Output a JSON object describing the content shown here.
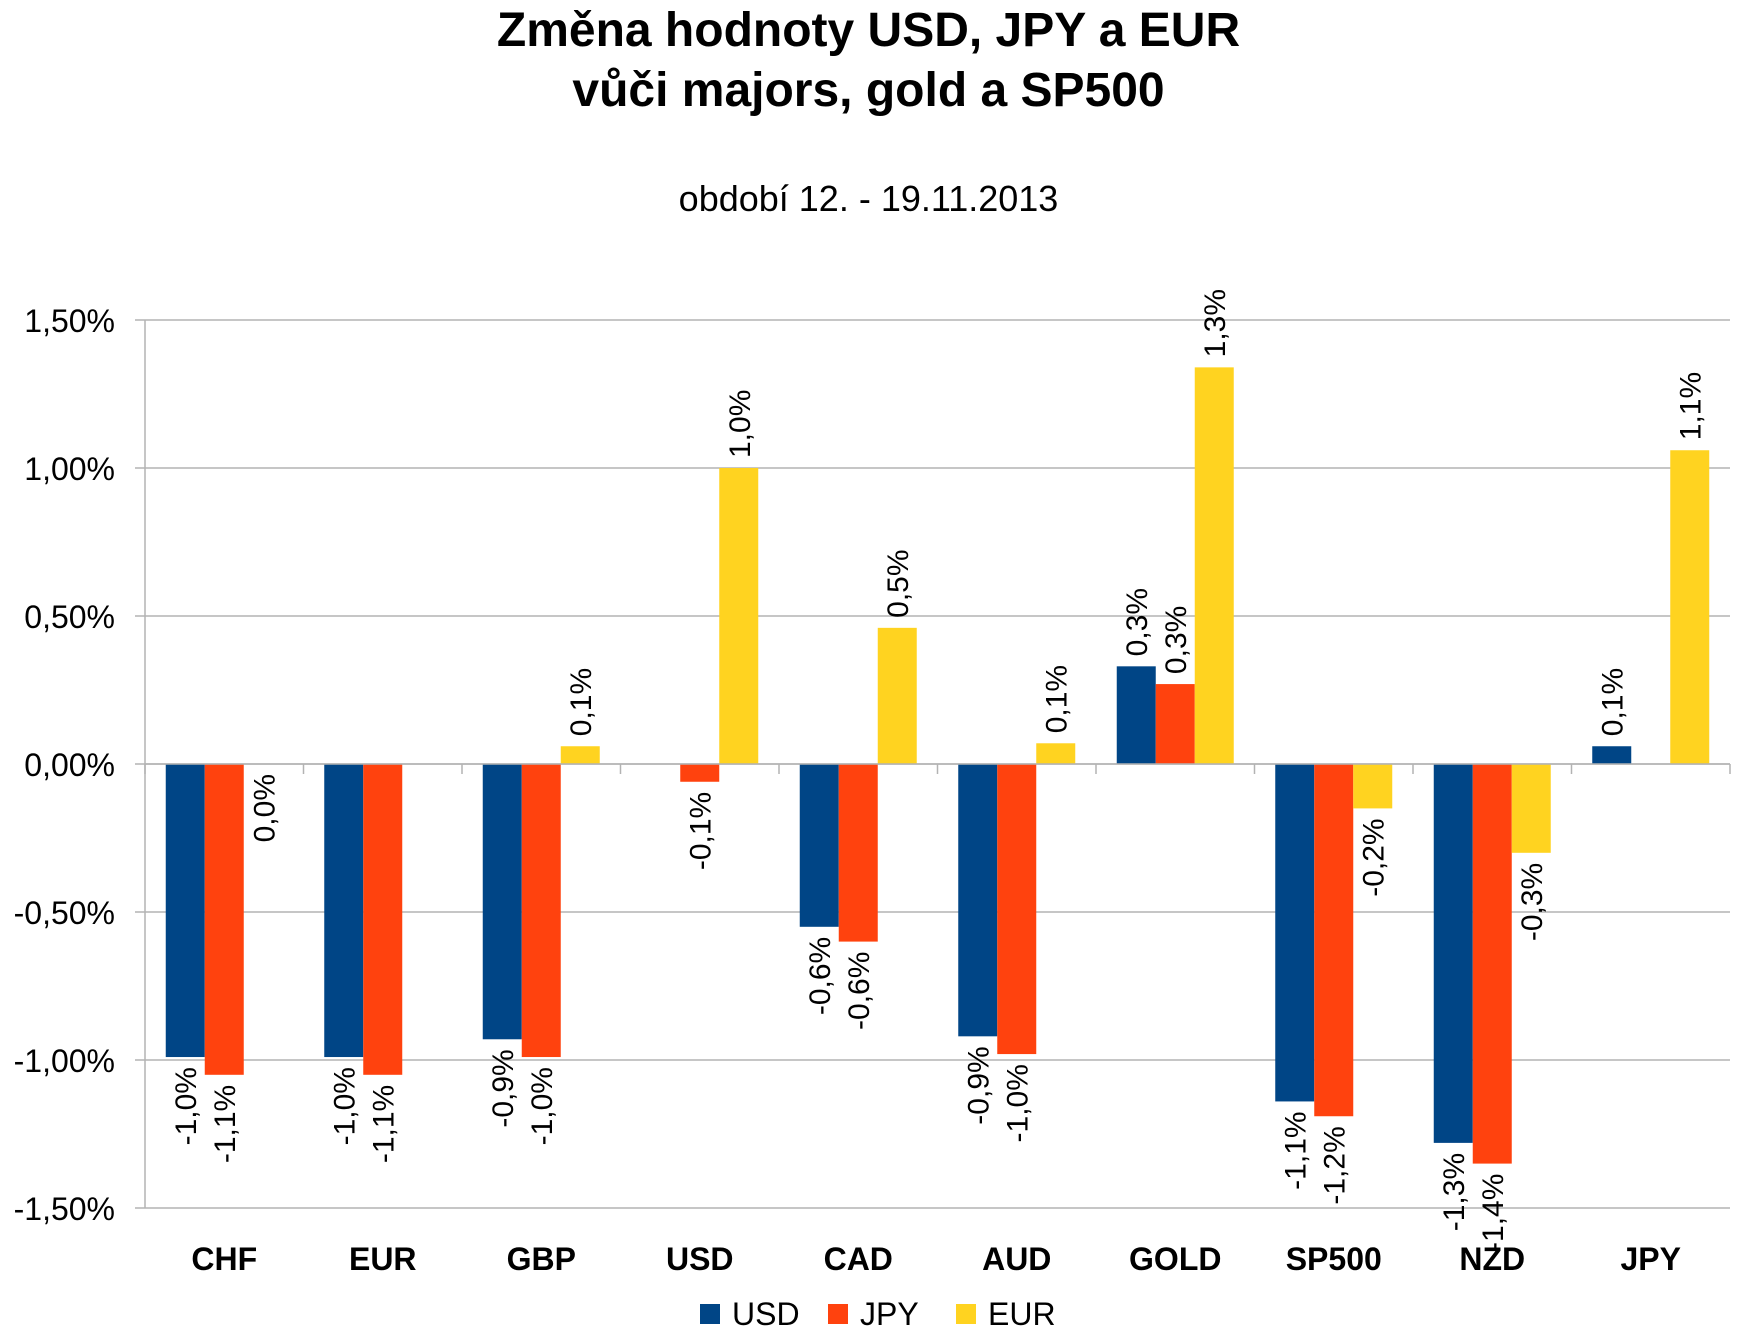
{
  "chart_data": {
    "type": "bar",
    "title_line1": "Změna hodnoty USD, JPY a EUR",
    "title_line2": "vůči majors, gold a SP500",
    "subtitle": "období 12. - 19.11.2013",
    "categories": [
      "CHF",
      "EUR",
      "GBP",
      "USD",
      "CAD",
      "AUD",
      "GOLD",
      "SP500",
      "NZD",
      "JPY"
    ],
    "series": [
      {
        "name": "USD",
        "color": "#004586",
        "values": [
          -0.99,
          -0.99,
          -0.93,
          null,
          -0.55,
          -0.92,
          0.33,
          -1.14,
          -1.28,
          0.06
        ],
        "labels": [
          "-1,0%",
          "-1,0%",
          "-0,9%",
          "",
          "-0,6%",
          "-0,9%",
          "0,3%",
          "-1,1%",
          "-1,3%",
          "0,1%"
        ]
      },
      {
        "name": "JPY",
        "color": "#ff420e",
        "values": [
          -1.05,
          -1.05,
          -0.99,
          -0.06,
          -0.6,
          -0.98,
          0.27,
          -1.19,
          -1.35,
          null
        ],
        "labels": [
          "-1,1%",
          "-1,1%",
          "-1,0%",
          "-0,1%",
          "-0,6%",
          "-1,0%",
          "0,3%",
          "-1,2%",
          "-1,4%",
          ""
        ]
      },
      {
        "name": "EUR",
        "color": "#ffd320",
        "values": [
          0.0,
          null,
          0.06,
          1.0,
          0.46,
          0.07,
          1.34,
          -0.15,
          -0.3,
          1.06
        ],
        "labels": [
          "0,0%",
          "",
          "0,1%",
          "1,0%",
          "0,5%",
          "0,1%",
          "1,3%",
          "-0,2%",
          "-0,3%",
          "1,1%"
        ]
      }
    ],
    "yticks": [
      1.5,
      1.0,
      0.5,
      0.0,
      -0.5,
      -1.0,
      -1.5
    ],
    "ytick_labels": [
      "1,50%",
      "1,00%",
      "0,50%",
      "0,00%",
      "-0,50%",
      "-1,00%",
      "-1,50%"
    ],
    "ylim": [
      -1.5,
      1.5
    ],
    "grid": true,
    "legend_position": "bottom"
  }
}
